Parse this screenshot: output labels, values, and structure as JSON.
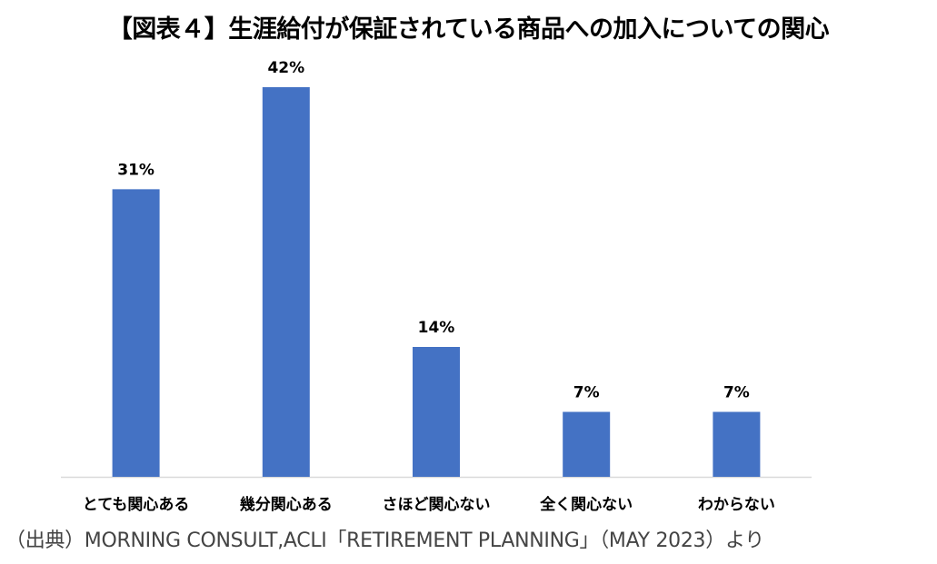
{
  "chart_data": {
    "type": "bar",
    "title": "【図表４】生涯給付が保証されている商品への加入についての関心",
    "categories": [
      "とても関心ある",
      "幾分関心ある",
      "さほど関心ない",
      "全く関心ない",
      "わからない"
    ],
    "values": [
      31,
      42,
      14,
      7,
      7
    ],
    "value_labels": [
      "31%",
      "42%",
      "14%",
      "7%",
      "7%"
    ],
    "xlabel": "",
    "ylabel": "",
    "ylim": [
      0,
      42
    ],
    "grid": false,
    "legend": "none",
    "bar_color": "#4472C4",
    "axis_color": "#D9D9D9"
  },
  "source": "（出典）MORNING CONSULT,ACLI「RETIREMENT PLANNING」（MAY 2023）より"
}
